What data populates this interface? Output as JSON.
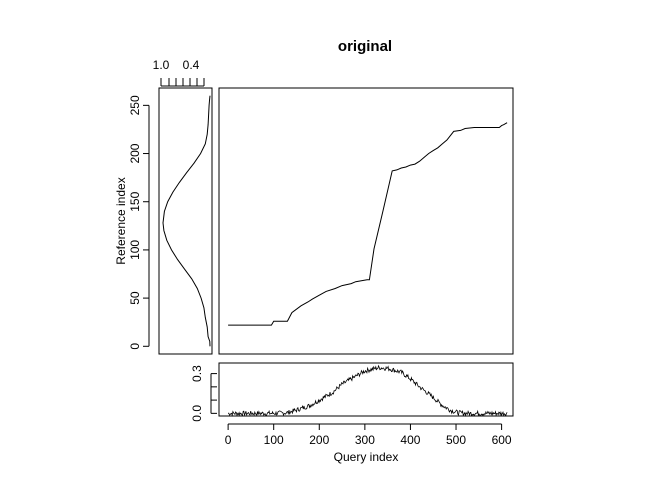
{
  "title": "original",
  "chart_data": [
    {
      "type": "line",
      "panel": "main",
      "title": "original",
      "xlabel": "",
      "ylabel": "",
      "xlim": [
        0,
        625
      ],
      "ylim": [
        -8,
        268
      ],
      "x_ticks": [],
      "y_ticks": [],
      "series": [
        {
          "x": [
            0,
            95,
            100,
            130,
            140,
            160,
            175,
            185,
            200,
            215,
            235,
            250,
            270,
            280,
            305,
            310,
            320,
            340,
            360,
            370,
            380,
            390,
            400,
            410,
            420,
            430,
            440,
            450,
            460,
            470,
            480,
            495,
            510,
            520,
            540,
            560,
            580,
            595,
            600,
            605,
            612
          ],
          "y": [
            22,
            22,
            26,
            26,
            35,
            42,
            46,
            49,
            53,
            57,
            60,
            63,
            65,
            67,
            69,
            69,
            101,
            141,
            182,
            183,
            185,
            186,
            188,
            189,
            192,
            196,
            200,
            203,
            206,
            210,
            214,
            223,
            224,
            226,
            227,
            227,
            227,
            227,
            229,
            230,
            232
          ]
        }
      ]
    },
    {
      "type": "line",
      "panel": "left",
      "xlabel": "",
      "ylabel": "Reference index",
      "ylim": [
        -8,
        268
      ],
      "y_ticks": [
        0,
        50,
        100,
        150,
        200,
        250
      ],
      "x_tick_labels": [
        "1.0",
        "0.4"
      ],
      "series": [
        {
          "y": [
            0,
            5,
            10,
            20,
            30,
            40,
            50,
            60,
            70,
            80,
            90,
            100,
            110,
            120,
            128,
            140,
            150,
            160,
            170,
            180,
            190,
            200,
            210,
            220,
            230,
            240,
            250,
            255,
            260
          ],
          "value": [
            0.0,
            0.005,
            0.04,
            0.06,
            0.1,
            0.13,
            0.19,
            0.27,
            0.39,
            0.54,
            0.69,
            0.82,
            0.92,
            0.98,
            1.0,
            0.97,
            0.9,
            0.79,
            0.65,
            0.5,
            0.34,
            0.2,
            0.1,
            0.06,
            0.04,
            0.03,
            0.02,
            0.01,
            0.0
          ]
        }
      ]
    },
    {
      "type": "line",
      "panel": "bottom",
      "xlabel": "Query index",
      "ylabel": "",
      "xlim": [
        -20,
        625
      ],
      "ylim": [
        -0.02,
        0.38
      ],
      "x_ticks": [
        0,
        100,
        200,
        300,
        400,
        500,
        600
      ],
      "y_tick_labels": [
        "0.0",
        "0.3"
      ],
      "y_ticks": [
        0.0,
        0.3
      ],
      "series": [
        {
          "x": [
            0,
            50,
            100,
            130,
            150,
            180,
            200,
            230,
            250,
            280,
            300,
            330,
            350,
            380,
            400,
            420,
            450,
            470,
            490,
            505,
            520,
            560,
            612
          ],
          "y": [
            0.0,
            0.0,
            0.0,
            0.005,
            0.025,
            0.06,
            0.1,
            0.16,
            0.22,
            0.28,
            0.32,
            0.345,
            0.34,
            0.31,
            0.26,
            0.2,
            0.12,
            0.06,
            0.02,
            0.005,
            0.0,
            0.0,
            0.0
          ]
        }
      ]
    }
  ]
}
